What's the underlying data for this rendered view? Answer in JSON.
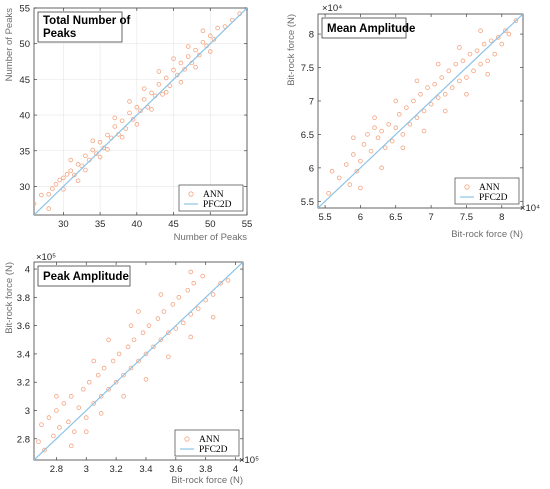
{
  "colors": {
    "ann": "#f4a582",
    "pfc2d": "#8ec4e6",
    "axis": "#404040",
    "grid": "#e6e6e6"
  },
  "chart_data": [
    {
      "type": "scatter",
      "title": "Total Number of Peaks",
      "xlabel": "Number of Peaks",
      "ylabel": "Number of Peaks",
      "exponent": "",
      "xlim": [
        26,
        55
      ],
      "ylim": [
        26,
        55
      ],
      "xticks": [
        "30",
        "35",
        "40",
        "45",
        "50",
        "55"
      ],
      "yticks": [
        "30",
        "35",
        "40",
        "45",
        "50",
        "55"
      ],
      "xtick_values": [
        30,
        35,
        40,
        45,
        50,
        55
      ],
      "ytick_values": [
        30,
        35,
        40,
        45,
        50,
        55
      ],
      "legend_position": "bottom-right",
      "grid": true,
      "series": [
        {
          "name": "ANN",
          "style": "circles",
          "points": [
            [
              26,
              27.6
            ],
            [
              27,
              28.8
            ],
            [
              28,
              28.9
            ],
            [
              28.5,
              29.7
            ],
            [
              29,
              30.3
            ],
            [
              29.5,
              30.9
            ],
            [
              30,
              31.2
            ],
            [
              30.5,
              31.7
            ],
            [
              31,
              32.2
            ],
            [
              31.5,
              31.6
            ],
            [
              32,
              33.1
            ],
            [
              32.5,
              32.9
            ],
            [
              33,
              34.3
            ],
            [
              33.5,
              33.7
            ],
            [
              34,
              35.1
            ],
            [
              34.5,
              34.6
            ],
            [
              35,
              36.2
            ],
            [
              35.5,
              35.4
            ],
            [
              36,
              37.2
            ],
            [
              36.5,
              36.8
            ],
            [
              37,
              38.4
            ],
            [
              37.5,
              37.3
            ],
            [
              38,
              39.2
            ],
            [
              38.5,
              38.1
            ],
            [
              39,
              40.3
            ],
            [
              39.5,
              39.4
            ],
            [
              40,
              41.1
            ],
            [
              40.5,
              40.6
            ],
            [
              41,
              42.2
            ],
            [
              41.5,
              41.1
            ],
            [
              42,
              43.1
            ],
            [
              42.5,
              42.7
            ],
            [
              43,
              44.3
            ],
            [
              43.5,
              42.9
            ],
            [
              44,
              45.2
            ],
            [
              44.5,
              44.1
            ],
            [
              45,
              46.3
            ],
            [
              45.5,
              45.6
            ],
            [
              46,
              47.3
            ],
            [
              46.5,
              46.4
            ],
            [
              47,
              48.2
            ],
            [
              47.5,
              47.3
            ],
            [
              48,
              49.1
            ],
            [
              48.5,
              48.4
            ],
            [
              49,
              50.2
            ],
            [
              49.5,
              49.7
            ],
            [
              50,
              51.1
            ],
            [
              50.5,
              50.6
            ],
            [
              51,
              52.2
            ],
            [
              52,
              52.4
            ],
            [
              53,
              53.3
            ],
            [
              54,
              54.2
            ],
            [
              28,
              26.9
            ],
            [
              30,
              29.6
            ],
            [
              32,
              30.8
            ],
            [
              33,
              32.3
            ],
            [
              35,
              34.1
            ],
            [
              36,
              35.2
            ],
            [
              38,
              36.9
            ],
            [
              40,
              38.7
            ],
            [
              42,
              40.8
            ],
            [
              44,
              43.2
            ],
            [
              46,
              44.6
            ],
            [
              48,
              46.7
            ],
            [
              50,
              48.9
            ],
            [
              31,
              33.7
            ],
            [
              34,
              36.4
            ],
            [
              37,
              39.6
            ],
            [
              41,
              43.7
            ],
            [
              45,
              47.9
            ],
            [
              49,
              51.8
            ],
            [
              39,
              41.9
            ],
            [
              43,
              46.1
            ],
            [
              47,
              49.6
            ]
          ]
        },
        {
          "name": "PFC2D",
          "style": "line",
          "points": [
            [
              26,
              26
            ],
            [
              55,
              55
            ]
          ]
        }
      ]
    },
    {
      "type": "scatter",
      "title": "Mean Amplitude",
      "xlabel": "Bit-rock force (N)",
      "ylabel": "Bit-rock force (N)",
      "exponent": "×10⁴",
      "xlim": [
        5.4,
        8.3
      ],
      "ylim": [
        5.4,
        8.3
      ],
      "xticks": [
        "5.5",
        "6",
        "6.5",
        "7",
        "7.5",
        "8"
      ],
      "yticks": [
        "5.5",
        "6",
        "6.5",
        "7",
        "7.5",
        "8"
      ],
      "xtick_values": [
        5.5,
        6,
        6.5,
        7,
        7.5,
        8
      ],
      "ytick_values": [
        5.5,
        6,
        6.5,
        7,
        7.5,
        8
      ],
      "legend_position": "bottom-right",
      "grid": false,
      "series": [
        {
          "name": "ANN",
          "style": "circles",
          "points": [
            [
              5.55,
              5.62
            ],
            [
              5.6,
              5.95
            ],
            [
              5.7,
              5.85
            ],
            [
              5.8,
              6.05
            ],
            [
              5.85,
              5.75
            ],
            [
              5.9,
              6.2
            ],
            [
              5.95,
              5.95
            ],
            [
              6.0,
              6.1
            ],
            [
              6.05,
              6.35
            ],
            [
              6.1,
              6.5
            ],
            [
              6.15,
              6.25
            ],
            [
              6.2,
              6.6
            ],
            [
              6.25,
              6.45
            ],
            [
              6.3,
              6.55
            ],
            [
              6.35,
              6.3
            ],
            [
              6.4,
              6.65
            ],
            [
              6.45,
              6.4
            ],
            [
              6.5,
              6.6
            ],
            [
              6.55,
              6.8
            ],
            [
              6.6,
              6.5
            ],
            [
              6.65,
              6.9
            ],
            [
              6.7,
              6.65
            ],
            [
              6.75,
              7.0
            ],
            [
              6.8,
              6.75
            ],
            [
              6.85,
              7.1
            ],
            [
              6.9,
              6.85
            ],
            [
              6.95,
              7.2
            ],
            [
              7.0,
              6.95
            ],
            [
              7.05,
              7.25
            ],
            [
              7.1,
              7.05
            ],
            [
              7.15,
              7.35
            ],
            [
              7.2,
              7.1
            ],
            [
              7.25,
              7.45
            ],
            [
              7.3,
              7.2
            ],
            [
              7.35,
              7.55
            ],
            [
              7.4,
              7.3
            ],
            [
              7.45,
              7.6
            ],
            [
              7.5,
              7.35
            ],
            [
              7.55,
              7.7
            ],
            [
              7.6,
              7.45
            ],
            [
              7.65,
              7.75
            ],
            [
              7.7,
              7.55
            ],
            [
              7.75,
              7.85
            ],
            [
              7.8,
              7.6
            ],
            [
              7.85,
              7.9
            ],
            [
              7.9,
              7.7
            ],
            [
              7.95,
              7.95
            ],
            [
              8.0,
              7.85
            ],
            [
              8.05,
              8.05
            ],
            [
              8.1,
              8.0
            ],
            [
              6.0,
              5.7
            ],
            [
              6.3,
              6.0
            ],
            [
              6.6,
              6.3
            ],
            [
              6.9,
              6.55
            ],
            [
              7.2,
              6.85
            ],
            [
              7.5,
              7.1
            ],
            [
              7.8,
              7.4
            ],
            [
              5.9,
              6.45
            ],
            [
              6.2,
              6.75
            ],
            [
              6.5,
              7.0
            ],
            [
              6.8,
              7.3
            ],
            [
              7.1,
              7.55
            ],
            [
              7.4,
              7.8
            ],
            [
              7.7,
              8.05
            ],
            [
              8.2,
              8.2
            ]
          ]
        },
        {
          "name": "PFC2D",
          "style": "line",
          "points": [
            [
              5.4,
              5.4
            ],
            [
              8.3,
              8.3
            ]
          ]
        }
      ]
    },
    {
      "type": "scatter",
      "title": "Peak Amplitude",
      "xlabel": "Bit-rock force (N)",
      "ylabel": "Bit-rock force (N)",
      "exponent": "×10⁵",
      "xlim": [
        2.65,
        4.05
      ],
      "ylim": [
        2.65,
        4.05
      ],
      "xticks": [
        "2.8",
        "3",
        "3.2",
        "3.4",
        "3.6",
        "3.8",
        "4"
      ],
      "yticks": [
        "2.8",
        "3",
        "3.2",
        "3.4",
        "3.6",
        "3.8",
        "4"
      ],
      "xtick_values": [
        2.8,
        3.0,
        3.2,
        3.4,
        3.6,
        3.8,
        4.0
      ],
      "ytick_values": [
        2.8,
        3.0,
        3.2,
        3.4,
        3.6,
        3.8,
        4.0
      ],
      "legend_position": "bottom-right",
      "grid": false,
      "series": [
        {
          "name": "ANN",
          "style": "circles",
          "points": [
            [
              2.68,
              2.78
            ],
            [
              2.7,
              2.9
            ],
            [
              2.72,
              2.72
            ],
            [
              2.75,
              2.95
            ],
            [
              2.78,
              2.82
            ],
            [
              2.8,
              3.0
            ],
            [
              2.82,
              2.88
            ],
            [
              2.85,
              3.05
            ],
            [
              2.88,
              2.92
            ],
            [
              2.9,
              3.1
            ],
            [
              2.92,
              2.85
            ],
            [
              2.95,
              3.02
            ],
            [
              2.98,
              3.15
            ],
            [
              3.0,
              2.95
            ],
            [
              3.02,
              3.2
            ],
            [
              3.05,
              3.05
            ],
            [
              3.08,
              3.25
            ],
            [
              3.1,
              3.1
            ],
            [
              3.12,
              3.3
            ],
            [
              3.15,
              3.15
            ],
            [
              3.18,
              3.35
            ],
            [
              3.2,
              3.2
            ],
            [
              3.22,
              3.4
            ],
            [
              3.25,
              3.25
            ],
            [
              3.28,
              3.45
            ],
            [
              3.3,
              3.3
            ],
            [
              3.32,
              3.5
            ],
            [
              3.35,
              3.35
            ],
            [
              3.38,
              3.55
            ],
            [
              3.4,
              3.4
            ],
            [
              3.42,
              3.6
            ],
            [
              3.45,
              3.45
            ],
            [
              3.48,
              3.65
            ],
            [
              3.5,
              3.5
            ],
            [
              3.52,
              3.7
            ],
            [
              3.55,
              3.55
            ],
            [
              3.58,
              3.75
            ],
            [
              3.6,
              3.58
            ],
            [
              3.62,
              3.8
            ],
            [
              3.65,
              3.62
            ],
            [
              3.68,
              3.85
            ],
            [
              3.7,
              3.68
            ],
            [
              3.72,
              3.9
            ],
            [
              3.75,
              3.72
            ],
            [
              3.78,
              3.95
            ],
            [
              3.8,
              3.78
            ],
            [
              3.85,
              3.82
            ],
            [
              3.9,
              3.9
            ],
            [
              3.95,
              3.92
            ],
            [
              2.9,
              2.75
            ],
            [
              3.0,
              2.85
            ],
            [
              3.1,
              2.98
            ],
            [
              3.25,
              3.1
            ],
            [
              3.4,
              3.22
            ],
            [
              3.55,
              3.38
            ],
            [
              3.7,
              3.52
            ],
            [
              3.85,
              3.66
            ],
            [
              2.8,
              3.1
            ],
            [
              3.05,
              3.35
            ],
            [
              3.3,
              3.6
            ],
            [
              3.5,
              3.82
            ],
            [
              3.7,
              3.98
            ],
            [
              3.35,
              3.7
            ],
            [
              3.15,
              3.5
            ]
          ]
        },
        {
          "name": "PFC2D",
          "style": "line",
          "points": [
            [
              2.65,
              2.65
            ],
            [
              4.05,
              4.05
            ]
          ]
        }
      ]
    }
  ]
}
